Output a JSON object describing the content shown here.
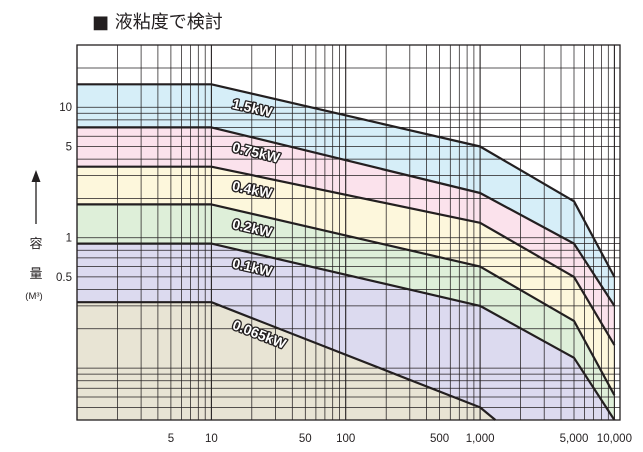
{
  "title": "■ 液粘度で検討",
  "y_axis_label": {
    "line1": "容",
    "line2": "量",
    "unit": "(M³)"
  },
  "chart_data": {
    "type": "area",
    "title": "液粘度で検討",
    "xscale": "log",
    "yscale": "log",
    "x_ticks": [
      {
        "value": 5,
        "label": "5"
      },
      {
        "value": 10,
        "label": "10"
      },
      {
        "value": 50,
        "label": "50"
      },
      {
        "value": 100,
        "label": "100"
      },
      {
        "value": 500,
        "label": "500"
      },
      {
        "value": 1000,
        "label": "1,000"
      },
      {
        "value": 5000,
        "label": "5,000"
      },
      {
        "value": 10000,
        "label": "10,000"
      }
    ],
    "y_ticks": [
      {
        "value": 0.5,
        "label": "0.5"
      },
      {
        "value": 1,
        "label": "1"
      },
      {
        "value": 5,
        "label": "5"
      },
      {
        "value": 10,
        "label": "10"
      }
    ],
    "ylabel": "容量 (M³)",
    "xlim": [
      1,
      11000
    ],
    "ylim": [
      0.04,
      30
    ],
    "series": [
      {
        "name": "1.5kW",
        "color": "#d6eef8",
        "x": [
          1,
          10,
          1000,
          5000,
          10000
        ],
        "y": [
          15,
          15,
          5,
          1.9,
          0.5
        ]
      },
      {
        "name": "0.75kW",
        "color": "#fbe2ec",
        "x": [
          1,
          10,
          1000,
          5000,
          10000
        ],
        "y": [
          7,
          7,
          2.2,
          0.9,
          0.3
        ]
      },
      {
        "name": "0.4kW",
        "color": "#fdf7dc",
        "x": [
          1,
          10,
          1000,
          5000,
          10000
        ],
        "y": [
          3.5,
          3.5,
          1.3,
          0.5,
          0.15
        ]
      },
      {
        "name": "0.2kW",
        "color": "#deefd9",
        "x": [
          1,
          10,
          1000,
          5000,
          10000
        ],
        "y": [
          1.8,
          1.8,
          0.6,
          0.23,
          0.062
        ]
      },
      {
        "name": "0.1kW",
        "color": "#dcdaef",
        "x": [
          1,
          10,
          1000,
          5000,
          10000
        ],
        "y": [
          0.9,
          0.9,
          0.3,
          0.12,
          0.04
        ]
      },
      {
        "name": "0.065kW",
        "color": "#e8e4d4",
        "x": [
          1,
          10,
          1000,
          1300
        ],
        "y": [
          0.32,
          0.32,
          0.05,
          0.04
        ]
      }
    ]
  }
}
